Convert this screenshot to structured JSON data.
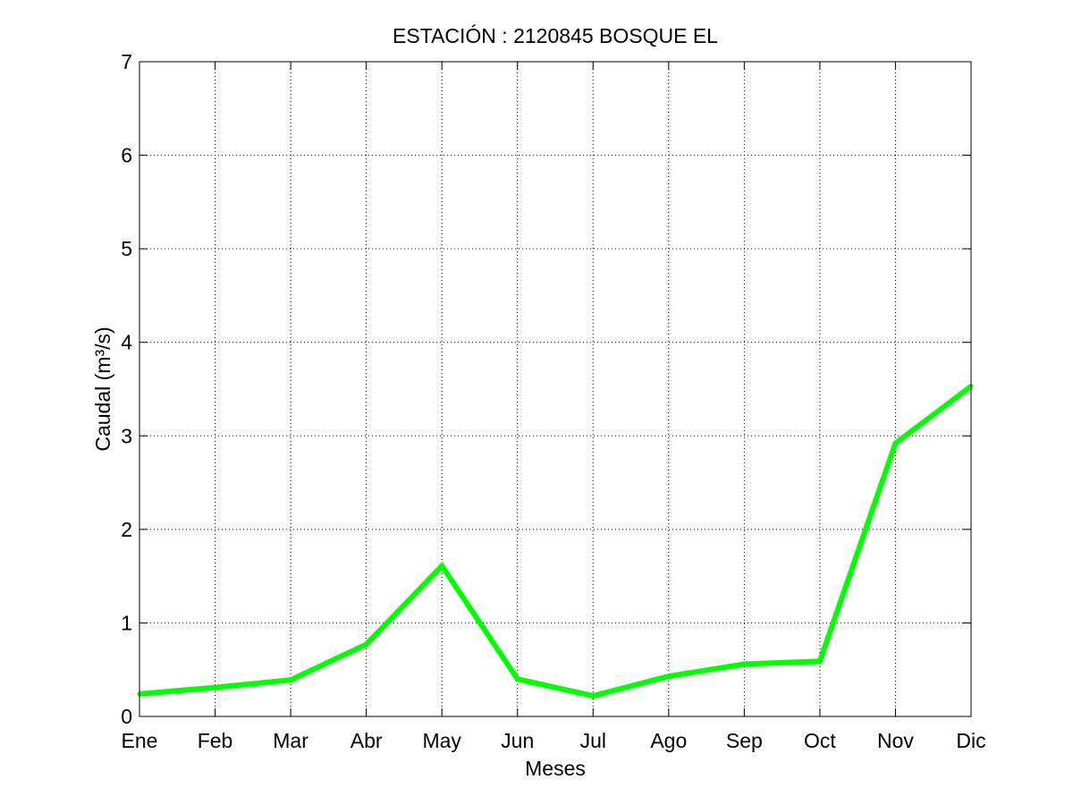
{
  "chart_data": {
    "type": "line",
    "title": "ESTACIÓN :  2120845  BOSQUE EL",
    "xlabel": "Meses",
    "ylabel": "Caudal (m³/s)",
    "categories": [
      "Ene",
      "Feb",
      "Mar",
      "Abr",
      "May",
      "Jun",
      "Jul",
      "Ago",
      "Sep",
      "Oct",
      "Nov",
      "Dic"
    ],
    "series": [
      {
        "values": [
          0.24,
          0.31,
          0.39,
          0.77,
          1.61,
          0.4,
          0.22,
          0.43,
          0.56,
          0.59,
          2.92,
          3.53
        ],
        "color": "#00ff00"
      }
    ],
    "ylim": [
      0,
      7
    ],
    "yticks": [
      0,
      1,
      2,
      3,
      4,
      5,
      6,
      7
    ],
    "grid": true,
    "legend": "none"
  }
}
